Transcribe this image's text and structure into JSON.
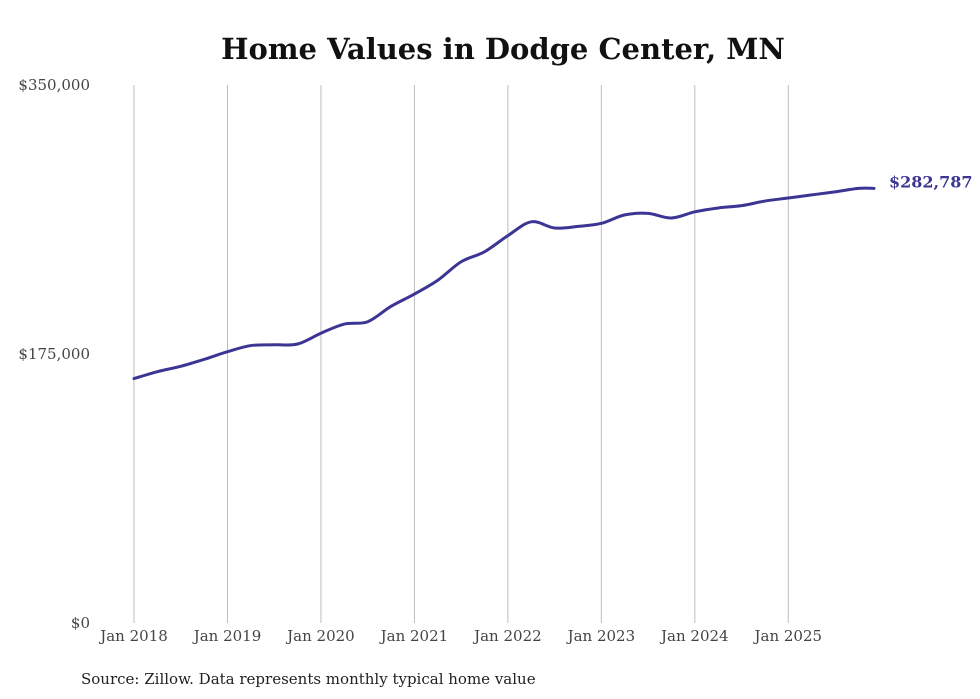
{
  "chart_data": {
    "type": "line",
    "title": "Home Values in Dodge Center, MN",
    "source_note": "Source: Zillow. Data represents monthly typical home value",
    "ylim": [
      0,
      350000
    ],
    "y_ticks": [
      {
        "value": 0,
        "label": "$0"
      },
      {
        "value": 175000,
        "label": "$175,000"
      },
      {
        "value": 350000,
        "label": "$350,000"
      }
    ],
    "xlim": [
      2018.0,
      2025.917
    ],
    "x_ticks": [
      {
        "value": 2018,
        "label": "Jan 2018"
      },
      {
        "value": 2019,
        "label": "Jan 2019"
      },
      {
        "value": 2020,
        "label": "Jan 2020"
      },
      {
        "value": 2021,
        "label": "Jan 2021"
      },
      {
        "value": 2022,
        "label": "Jan 2022"
      },
      {
        "value": 2023,
        "label": "Jan 2023"
      },
      {
        "value": 2024,
        "label": "Jan 2024"
      },
      {
        "value": 2025,
        "label": "Jan 2025"
      }
    ],
    "series": [
      {
        "name": "Typical home value",
        "color": "#3b3594",
        "end_label": "$282,787",
        "x": [
          2018.0,
          2018.25,
          2018.5,
          2018.75,
          2019.0,
          2019.25,
          2019.5,
          2019.75,
          2020.0,
          2020.25,
          2020.5,
          2020.75,
          2021.0,
          2021.25,
          2021.5,
          2021.75,
          2022.0,
          2022.25,
          2022.5,
          2022.75,
          2023.0,
          2023.25,
          2023.5,
          2023.75,
          2024.0,
          2024.25,
          2024.5,
          2024.75,
          2025.0,
          2025.25,
          2025.5,
          2025.75,
          2025.917
        ],
        "values": [
          159000,
          163500,
          167000,
          171500,
          176500,
          180500,
          181000,
          181500,
          188500,
          194500,
          196000,
          206000,
          214000,
          223000,
          235000,
          241500,
          252000,
          261000,
          257000,
          258000,
          260000,
          265500,
          266500,
          263500,
          267500,
          270000,
          271500,
          274500,
          276500,
          278500,
          280500,
          282787,
          282787
        ]
      }
    ]
  }
}
